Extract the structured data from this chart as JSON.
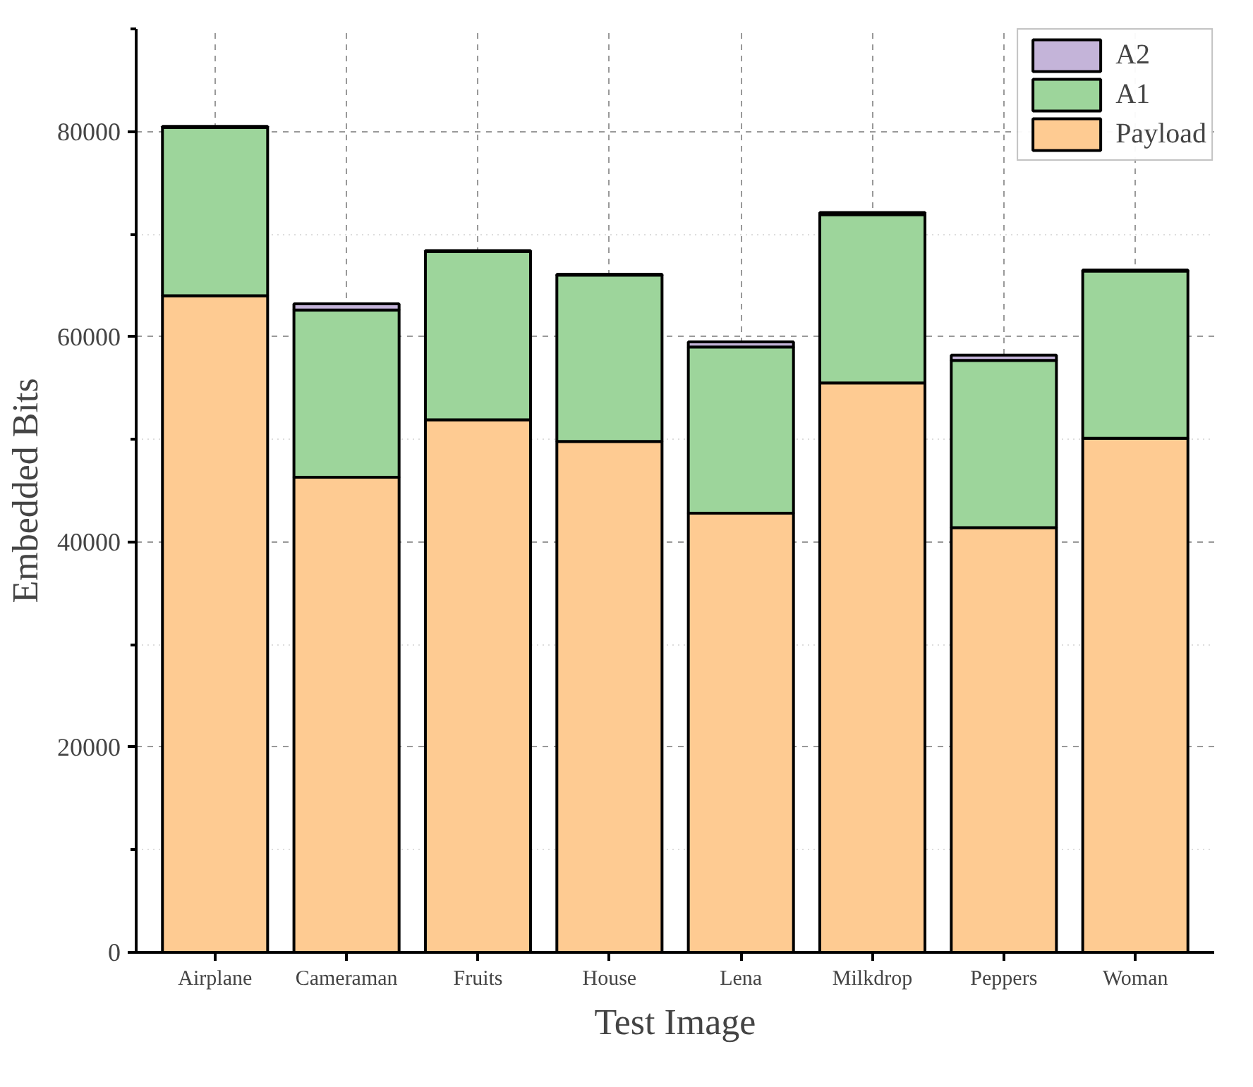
{
  "chart_data": {
    "type": "bar",
    "stacked": true,
    "xlabel": "Test Image",
    "ylabel": "Embedded Bits",
    "categories": [
      "Airplane",
      "Cameraman",
      "Fruits",
      "House",
      "Lena",
      "Milkdrop",
      "Peppers",
      "Woman"
    ],
    "series": [
      {
        "name": "Payload",
        "color": "#fecb92",
        "values": [
          64000,
          46300,
          51900,
          49800,
          42800,
          55500,
          41400,
          50100
        ]
      },
      {
        "name": "A1",
        "color": "#9dd59b",
        "values": [
          16400,
          16300,
          16400,
          16200,
          16200,
          16400,
          16300,
          16300
        ]
      },
      {
        "name": "A2",
        "color": "#c4b4d9",
        "values": [
          100,
          600,
          100,
          100,
          500,
          200,
          500,
          100
        ]
      }
    ],
    "ylim": [
      0,
      90000
    ],
    "yticks": [
      0,
      20000,
      40000,
      60000,
      80000
    ],
    "grid": true,
    "legend": "top right"
  }
}
